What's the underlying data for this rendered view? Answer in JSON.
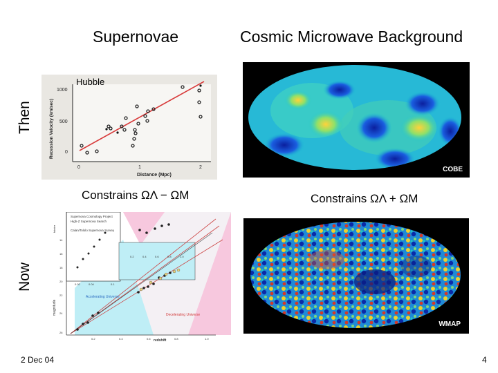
{
  "titles": {
    "left": "Supernovae",
    "right": "Cosmic Microwave Background"
  },
  "rows": {
    "then": "Then",
    "now": "Now"
  },
  "hubble": {
    "label": "Hubble",
    "y_axis": "Recession Velocity (km/sec)",
    "x_axis": "Distance (Mpc)",
    "y_ticks": [
      "1000",
      "500",
      "0"
    ],
    "x_ticks": [
      "0",
      "1",
      "2"
    ]
  },
  "captions": {
    "left": "Constrains ΩΛ − ΩM",
    "right": "Constrains ΩΛ + ΩM"
  },
  "cobe": {
    "label": "COBE"
  },
  "wmap": {
    "label": "WMAP"
  },
  "sn_plot": {
    "legend_1": "Supernova Cosmology Project",
    "legend_2": "High-Z Supernova Search",
    "legend_3": "Calan/Tololo Supernova Survey",
    "y_axis": "magnitude",
    "x_axis": "redshift",
    "y_label_top": "fainter",
    "accelerating": "Accelerating Universe",
    "decelerating": "Decelerating Universe",
    "inset_x_ticks": [
      "0.2",
      "0.4",
      "0.6",
      "0.8",
      "1.0"
    ],
    "main_x_ticks": [
      "0.2",
      "0.4",
      "0.6",
      "0.8",
      "1.0"
    ],
    "y_ticks": [
      "14",
      "16",
      "18",
      "20",
      "22",
      "24",
      "26"
    ],
    "left_inset_ticks": [
      "0.02",
      "0.04",
      "0.1"
    ]
  },
  "footer": {
    "date": "2 Dec 04",
    "page": "4"
  }
}
